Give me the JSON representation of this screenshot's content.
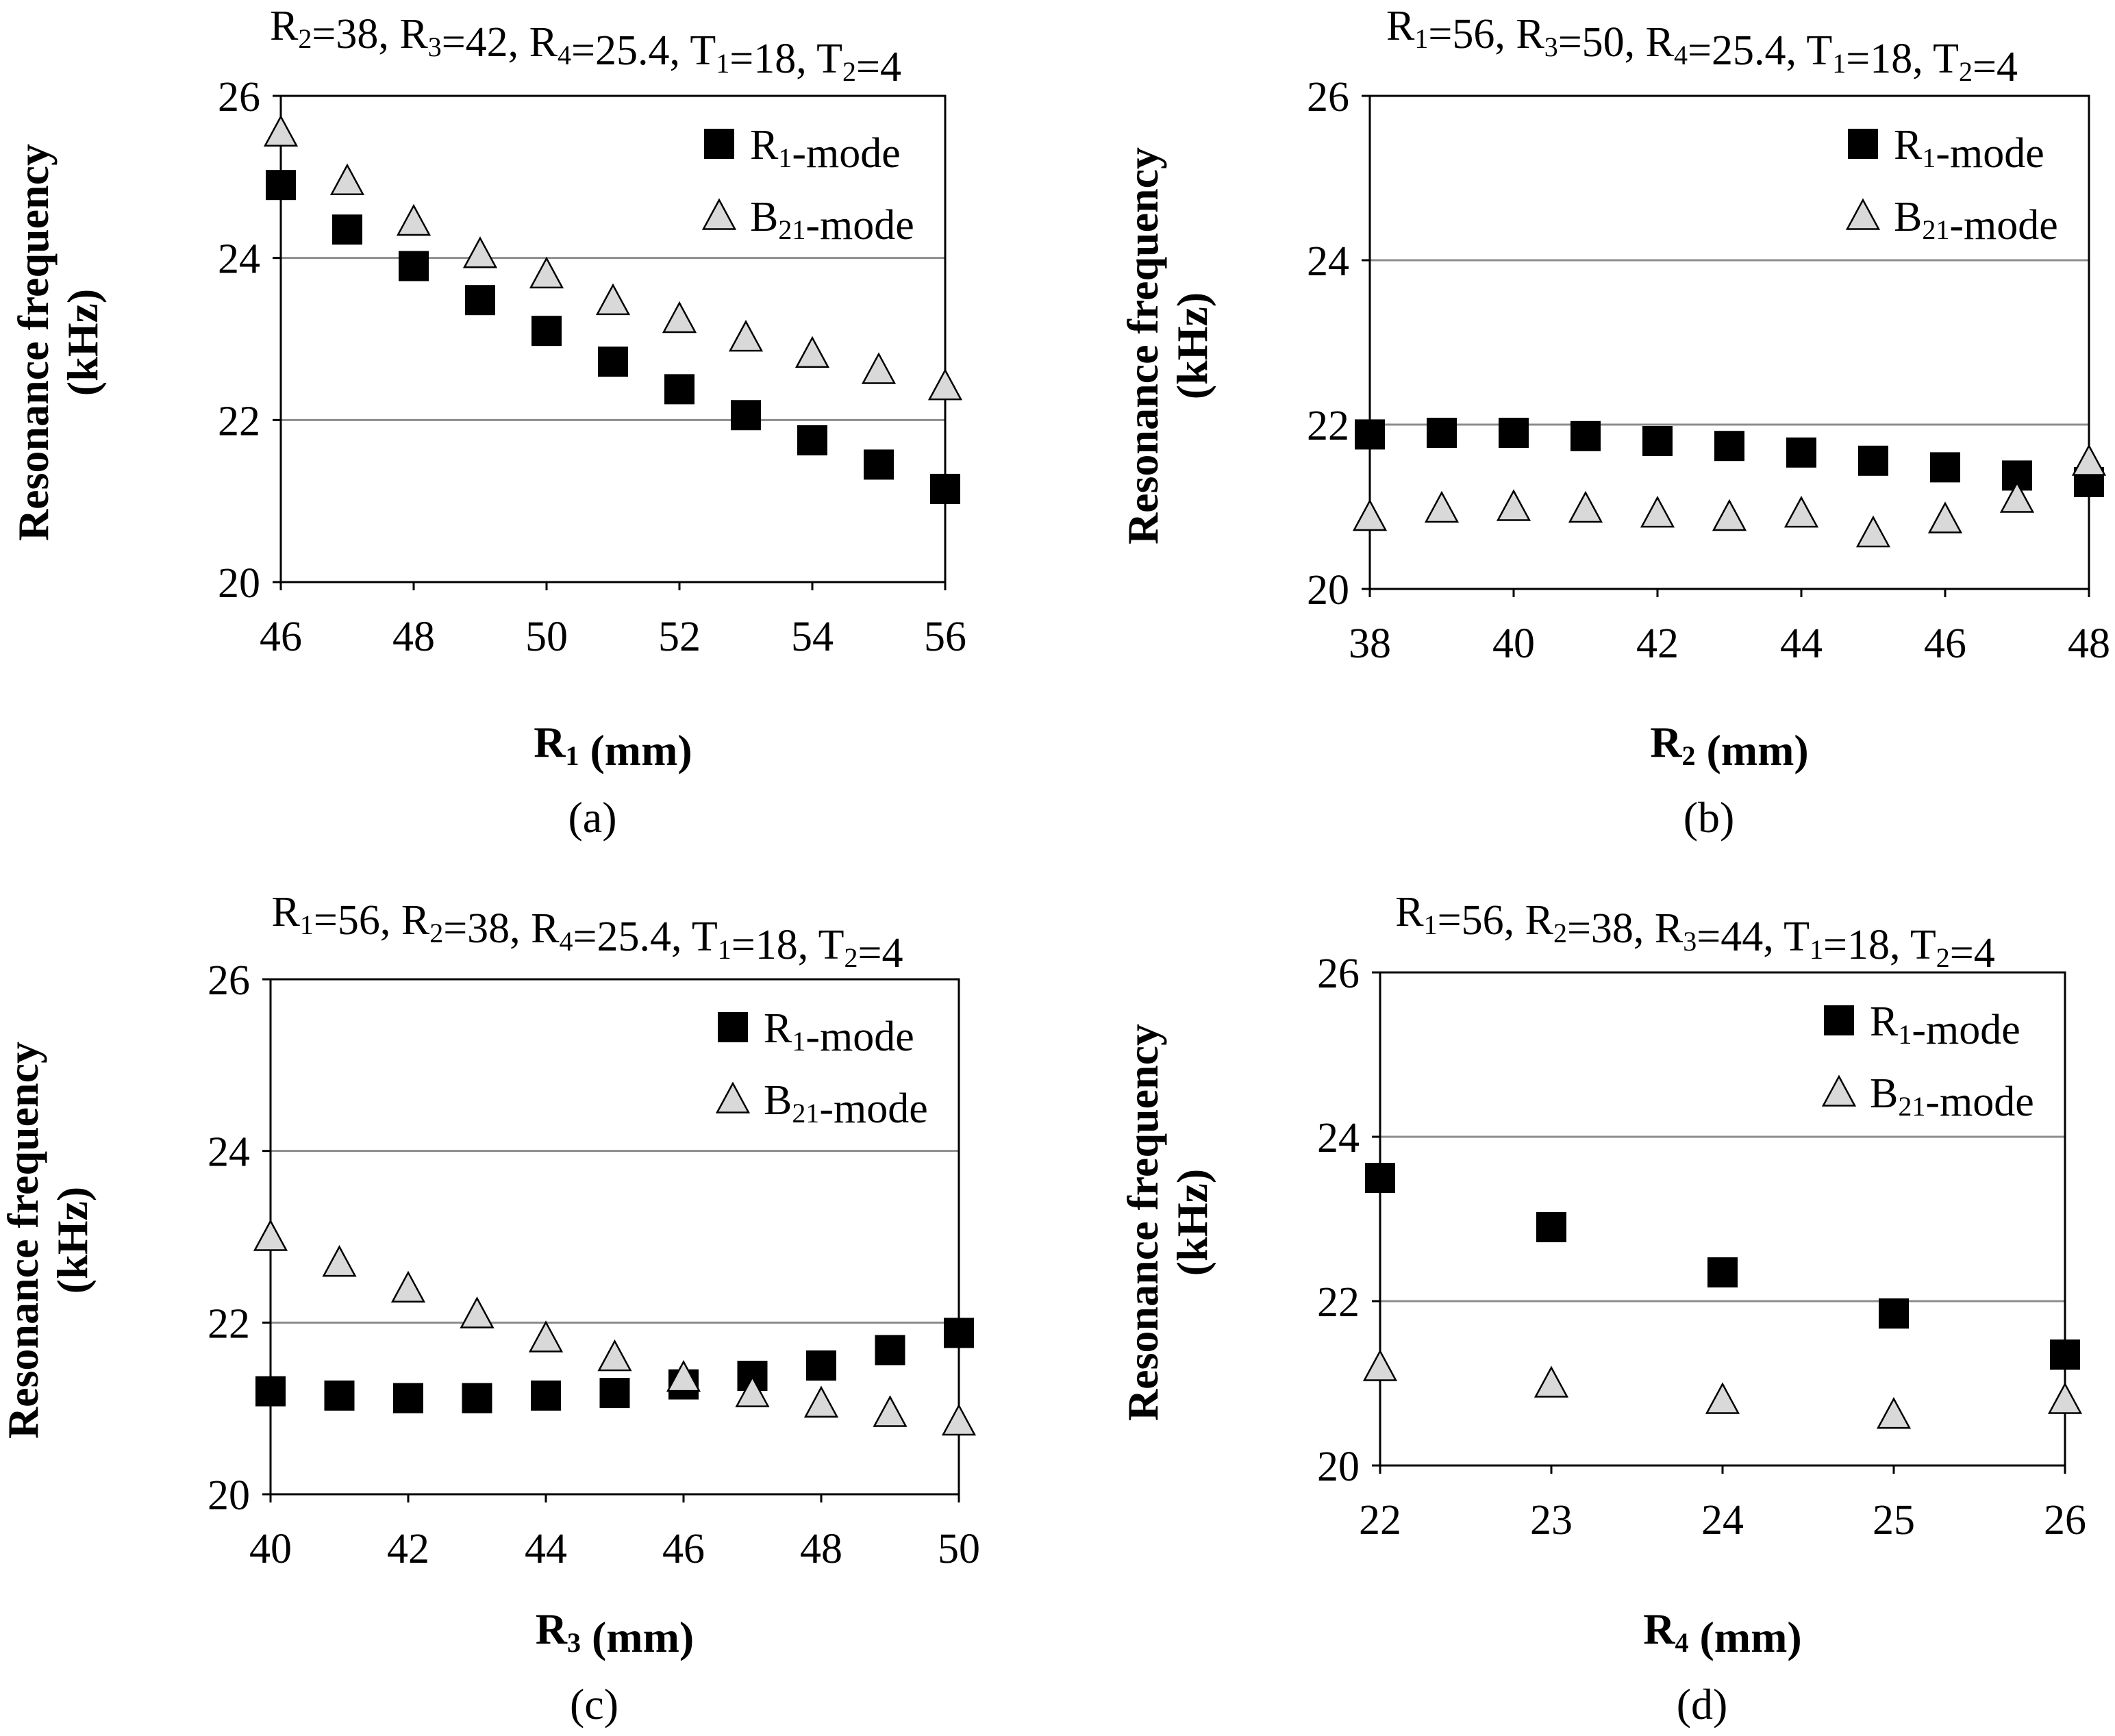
{
  "chart_data": [
    {
      "type": "scatter",
      "panel_label": "(a)",
      "title": "R2=38, R3=42, R4=25.4, T1=18, T2=4",
      "title_parts": [
        [
          "R",
          "2"
        ],
        [
          "=38, R",
          ""
        ],
        [
          "",
          "3"
        ],
        [
          "=42, R",
          ""
        ],
        [
          "",
          "4"
        ],
        [
          "=25.4, T",
          ""
        ],
        [
          "",
          "1"
        ],
        [
          "=18, T",
          ""
        ],
        [
          "",
          "2"
        ],
        [
          "=4",
          ""
        ]
      ],
      "xlabel": "R1 (mm)",
      "xlabel_parts": [
        [
          "R",
          "1"
        ],
        [
          " (mm)",
          ""
        ]
      ],
      "ylabel": "Resonance frequency (kHz)",
      "ylabel_lines": [
        "Resonance frequency",
        "(kHz)"
      ],
      "xlim": [
        46,
        56
      ],
      "ylim": [
        20,
        26
      ],
      "xticks": [
        46,
        48,
        50,
        52,
        54,
        56
      ],
      "yticks": [
        20,
        22,
        24,
        26
      ],
      "grid_y": [
        22,
        24
      ],
      "legend": [
        "R1-mode",
        "B21-mode"
      ],
      "series": [
        {
          "name": "R1-mode",
          "marker": "square",
          "x": [
            46,
            47,
            48,
            49,
            50,
            51,
            52,
            53,
            54,
            55,
            56
          ],
          "y": [
            24.9,
            24.35,
            23.9,
            23.48,
            23.1,
            22.72,
            22.38,
            22.06,
            21.75,
            21.45,
            21.15
          ]
        },
        {
          "name": "B21-mode",
          "marker": "triangle",
          "x": [
            46,
            47,
            48,
            49,
            50,
            51,
            52,
            53,
            54,
            55,
            56
          ],
          "y": [
            25.55,
            24.95,
            24.45,
            24.05,
            23.8,
            23.47,
            23.25,
            23.02,
            22.82,
            22.62,
            22.42
          ]
        }
      ]
    },
    {
      "type": "scatter",
      "panel_label": "(b)",
      "title": "R1=56, R3=50, R4=25.4, T1=18, T2=4",
      "xlabel": "R2 (mm)",
      "ylabel": "Resonance frequency (kHz)",
      "ylabel_lines": [
        "Resonance frequency",
        "(kHz)"
      ],
      "xlim": [
        38,
        48
      ],
      "ylim": [
        20,
        26
      ],
      "xticks": [
        38,
        40,
        42,
        44,
        46,
        48
      ],
      "yticks": [
        20,
        22,
        24,
        26
      ],
      "grid_y": [
        22,
        24
      ],
      "legend": [
        "R1-mode",
        "B21-mode"
      ],
      "series": [
        {
          "name": "R1-mode",
          "marker": "square",
          "x": [
            38,
            39,
            40,
            41,
            42,
            43,
            44,
            45,
            46,
            47,
            48
          ],
          "y": [
            21.88,
            21.9,
            21.9,
            21.86,
            21.8,
            21.74,
            21.66,
            21.56,
            21.48,
            21.38,
            21.3
          ]
        },
        {
          "name": "B21-mode",
          "marker": "triangle",
          "x": [
            38,
            39,
            40,
            41,
            42,
            43,
            44,
            45,
            46,
            47,
            48
          ],
          "y": [
            20.88,
            20.98,
            21.0,
            20.98,
            20.92,
            20.88,
            20.92,
            20.68,
            20.85,
            21.1,
            21.55
          ]
        }
      ]
    },
    {
      "type": "scatter",
      "panel_label": "(c)",
      "title": "R1=56, R2=38, R4=25.4, T1=18, T2=4",
      "xlabel": "R3 (mm)",
      "ylabel": "Resonance frequency (kHz)",
      "ylabel_lines": [
        "Resonance frequency",
        "(kHz)"
      ],
      "xlim": [
        40,
        50
      ],
      "ylim": [
        20,
        26
      ],
      "xticks": [
        40,
        42,
        44,
        46,
        48,
        50
      ],
      "yticks": [
        20,
        22,
        24,
        26
      ],
      "grid_y": [
        22,
        24
      ],
      "legend": [
        "R1-mode",
        "B21-mode"
      ],
      "series": [
        {
          "name": "R1-mode",
          "marker": "square",
          "x": [
            40,
            41,
            42,
            43,
            44,
            45,
            46,
            47,
            48,
            49,
            50
          ],
          "y": [
            21.2,
            21.15,
            21.12,
            21.12,
            21.15,
            21.18,
            21.28,
            21.38,
            21.5,
            21.68,
            21.88
          ]
        },
        {
          "name": "B21-mode",
          "marker": "triangle",
          "x": [
            40,
            41,
            42,
            43,
            44,
            45,
            46,
            47,
            48,
            49,
            50
          ],
          "y": [
            23.0,
            22.7,
            22.4,
            22.1,
            21.82,
            21.6,
            21.36,
            21.18,
            21.06,
            20.95,
            20.85
          ]
        }
      ]
    },
    {
      "type": "scatter",
      "panel_label": "(d)",
      "title": "R1=56, R2=38, R3=44, T1=18, T2=4",
      "xlabel": "R4 (mm)",
      "ylabel": "Resonance frequency (kHz)",
      "ylabel_lines": [
        "Resonance frequency",
        "(kHz)"
      ],
      "xlim": [
        22,
        26
      ],
      "ylim": [
        20,
        26
      ],
      "xticks": [
        22,
        23,
        24,
        25,
        26
      ],
      "yticks": [
        20,
        22,
        24,
        26
      ],
      "grid_y": [
        22,
        24
      ],
      "legend": [
        "R1-mode",
        "B21-mode"
      ],
      "series": [
        {
          "name": "R1-mode",
          "marker": "square",
          "x": [
            22,
            23,
            24,
            25,
            26
          ],
          "y": [
            23.5,
            22.9,
            22.35,
            21.85,
            21.35
          ]
        },
        {
          "name": "B21-mode",
          "marker": "triangle",
          "x": [
            22,
            23,
            24,
            25,
            26
          ],
          "y": [
            21.2,
            21.0,
            20.8,
            20.62,
            20.8
          ]
        }
      ]
    }
  ]
}
